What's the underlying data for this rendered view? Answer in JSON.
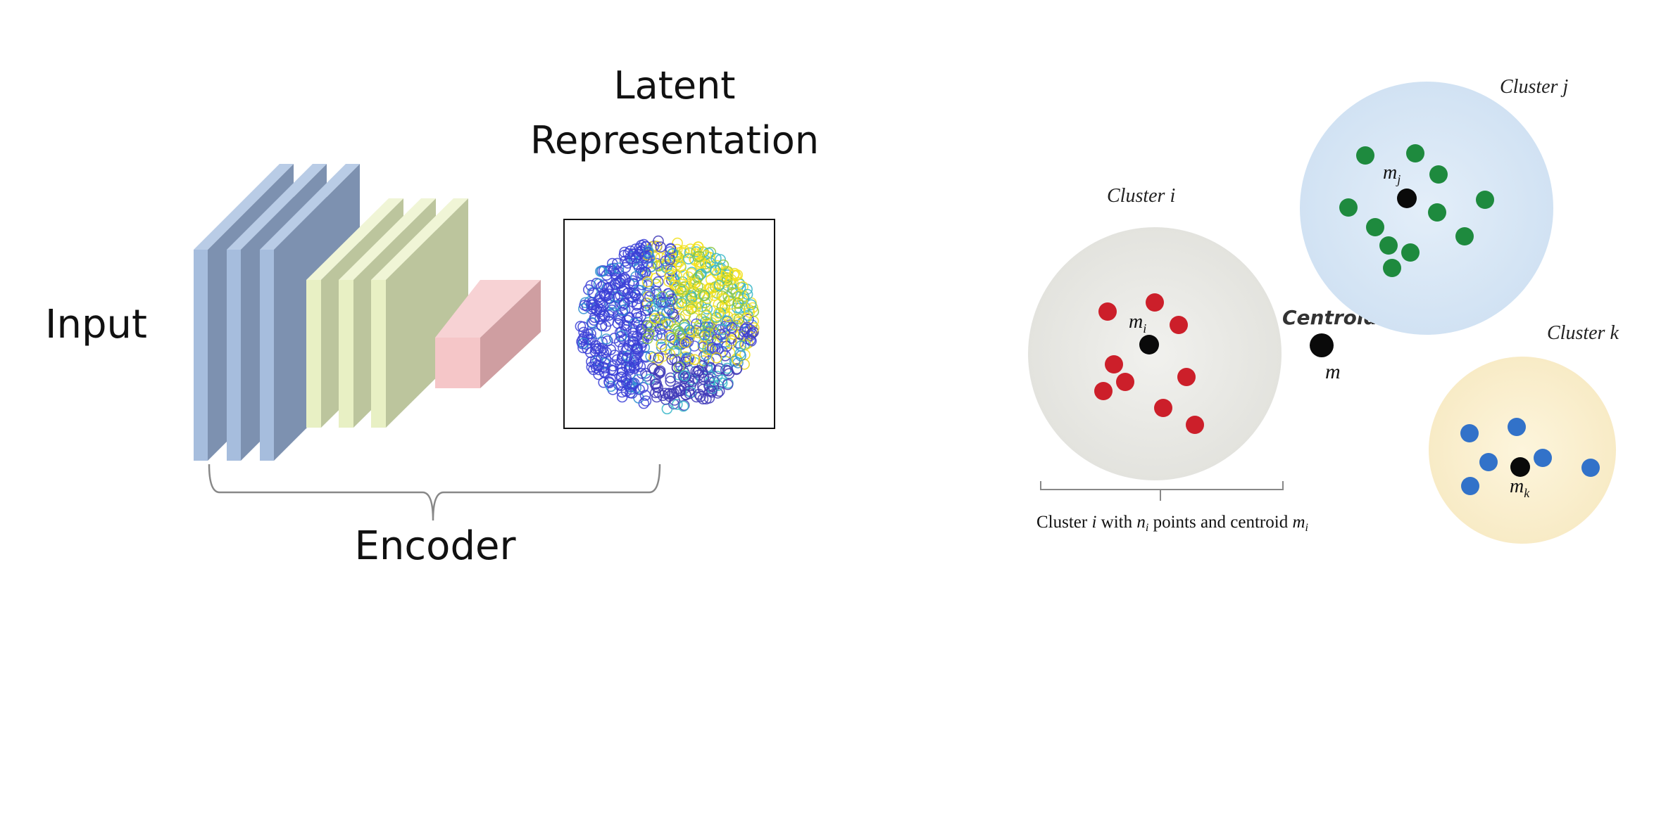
{
  "labels": {
    "input": "Input",
    "latent_line1": "Latent",
    "latent_line2": "Representation",
    "encoder": "Encoder"
  },
  "clusters": {
    "cluster_i_label": "Cluster i",
    "cluster_j_label": "Cluster j",
    "cluster_k_label": "Cluster k",
    "centroid_label": "Centroid",
    "global_centroid_symbol": "m",
    "centroid_i_symbol": "m",
    "centroid_i_sub": "i",
    "centroid_j_symbol": "m",
    "centroid_j_sub": "j",
    "centroid_k_symbol": "m",
    "centroid_k_sub": "k",
    "caption_part1": "Cluster ",
    "caption_i": "i",
    "caption_part2": " with ",
    "caption_n": "n",
    "caption_n_sub": "i",
    "caption_part3": " points and centroid ",
    "caption_m": "m",
    "caption_m_sub": "i"
  },
  "colors": {
    "layer_blue_front": "#a6bddd",
    "layer_blue_side": "#7d91b0",
    "layer_green_front": "#e8f0c4",
    "layer_green_side": "#bcc59d",
    "block_pink_front": "#f5c6c8",
    "block_pink_side": "#cf9ea1",
    "cluster_i_fill": "#ebebe6",
    "cluster_j_fill": "#d9e8f6",
    "cluster_k_fill": "#fbf0cf",
    "points_i": "#cc1f2a",
    "points_j": "#1e8a3e",
    "points_k": "#3272c9",
    "centroid": "#0a0a0a",
    "bracket": "#888888"
  }
}
